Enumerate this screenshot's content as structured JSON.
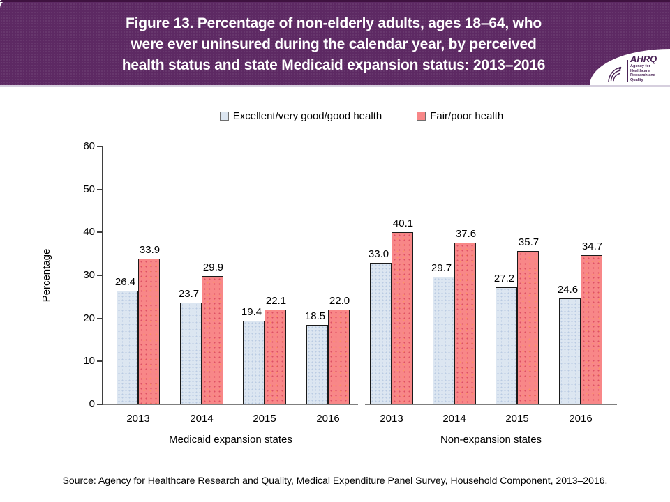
{
  "header": {
    "title_lines": [
      "Figure 13. Percentage of non-elderly adults, ages 18–64, who",
      "were ever uninsured during the calendar year, by perceived",
      "health status and state Medicaid expansion status: 2013–2016"
    ],
    "banner_color": "#5d2963",
    "logo": {
      "acronym": "AHRQ",
      "tagline_line1": "Agency for Healthcare",
      "tagline_line2": "Research and Quality"
    }
  },
  "legend": {
    "items": [
      {
        "label": "Excellent/very good/good health",
        "color": "#dce6f1"
      },
      {
        "label": "Fair/poor health",
        "color": "#f88788"
      }
    ]
  },
  "chart_data": {
    "type": "bar",
    "title": "Percentage of non-elderly adults ages 18–64 ever uninsured during the calendar year",
    "ylabel": "Percentage",
    "xlabel": "",
    "ylim": [
      0,
      60
    ],
    "yticks": [
      0,
      10,
      20,
      30,
      40,
      50,
      60
    ],
    "grid": false,
    "legend_position": "top",
    "categories": [
      "2013",
      "2014",
      "2015",
      "2016"
    ],
    "series_colors": [
      "#dce6f1",
      "#f88788"
    ],
    "groups": [
      {
        "label": "Medicaid expansion states",
        "series": [
          {
            "name": "Excellent/very good/good health",
            "values": [
              26.4,
              23.7,
              19.4,
              18.5
            ]
          },
          {
            "name": "Fair/poor health",
            "values": [
              33.9,
              29.9,
              22.1,
              22.0
            ]
          }
        ]
      },
      {
        "label": "Non-expansion states",
        "series": [
          {
            "name": "Excellent/very good/good health",
            "values": [
              33.0,
              29.7,
              27.2,
              24.6
            ]
          },
          {
            "name": "Fair/poor health",
            "values": [
              40.1,
              37.6,
              35.7,
              34.7
            ]
          }
        ]
      }
    ]
  },
  "source": "Source: Agency for Healthcare Research and Quality, Medical Expenditure Panel Survey, Household Component, 2013–2016."
}
